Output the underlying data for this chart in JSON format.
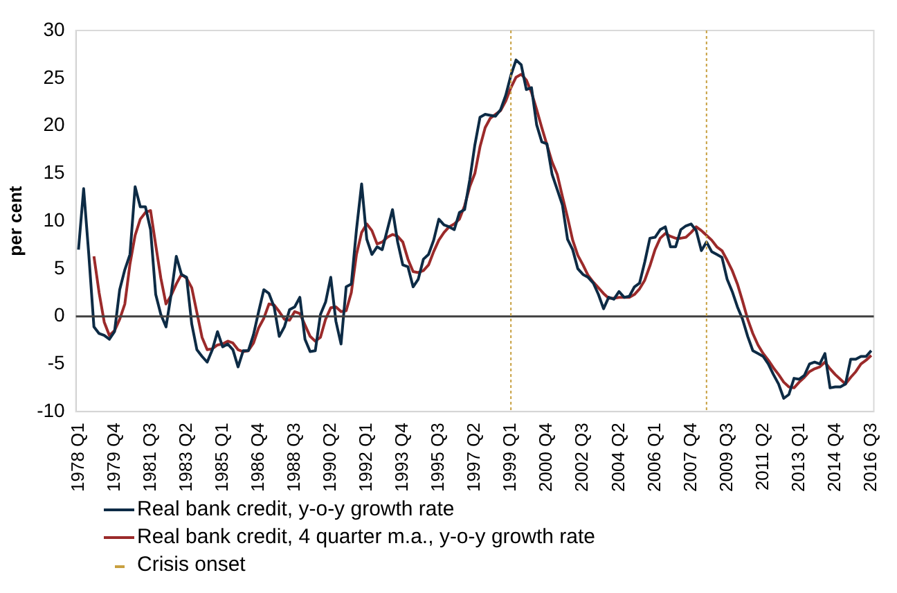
{
  "chart_data": {
    "type": "line",
    "ylabel": "per cent",
    "x": [
      "1978-01",
      "1978-04",
      "1978-07",
      "1978-10",
      "1979-01",
      "1979-04",
      "1979-07",
      "1979-10",
      "1980-01",
      "1980-04",
      "1980-07",
      "1980-10",
      "1981-01",
      "1981-04",
      "1981-07",
      "1981-10",
      "1982-01",
      "1982-04",
      "1982-07",
      "1982-10",
      "1983-01",
      "1983-04",
      "1983-07",
      "1983-10",
      "1984-01",
      "1984-04",
      "1984-07",
      "1984-10",
      "1985-01",
      "1985-04",
      "1985-07",
      "1985-10",
      "1986-01",
      "1986-04",
      "1986-07",
      "1986-10",
      "1987-01",
      "1987-04",
      "1987-07",
      "1987-10",
      "1988-01",
      "1988-04",
      "1988-07",
      "1988-10",
      "1989-01",
      "1989-04",
      "1989-07",
      "1989-10",
      "1990-01",
      "1990-04",
      "1990-07",
      "1990-10",
      "1991-01",
      "1991-04",
      "1991-07",
      "1991-10",
      "1992-01",
      "1992-04",
      "1992-07",
      "1992-10",
      "1993-01",
      "1993-04",
      "1993-07",
      "1993-10",
      "1994-01",
      "1994-04",
      "1994-07",
      "1994-10",
      "1995-01",
      "1995-04",
      "1995-07",
      "1995-10",
      "1996-01",
      "1996-04",
      "1996-07",
      "1996-10",
      "1997-01",
      "1997-04",
      "1997-07",
      "1997-10",
      "1998-01",
      "1998-04",
      "1998-07",
      "1998-10",
      "1999-01",
      "1999-04",
      "1999-07",
      "1999-10",
      "2000-01",
      "2000-04",
      "2000-07",
      "2000-10",
      "2001-01",
      "2001-04",
      "2001-07",
      "2001-10",
      "2002-01",
      "2002-04",
      "2002-07",
      "2002-10",
      "2003-01",
      "2003-04",
      "2003-07",
      "2003-10",
      "2004-01",
      "2004-04",
      "2004-07",
      "2004-10",
      "2005-01",
      "2005-04",
      "2005-07",
      "2005-10",
      "2006-01",
      "2006-04",
      "2006-07",
      "2006-10",
      "2007-01",
      "2007-04",
      "2007-07",
      "2007-10",
      "2008-01",
      "2008-04",
      "2008-07",
      "2008-10",
      "2009-01",
      "2009-04",
      "2009-07",
      "2009-10",
      "2010-01",
      "2010-04",
      "2010-07",
      "2010-10",
      "2011-01",
      "2011-04",
      "2011-07",
      "2011-10",
      "2012-01",
      "2012-04",
      "2012-07",
      "2012-10",
      "2013-01",
      "2013-04",
      "2013-07",
      "2013-10",
      "2014-01",
      "2014-04",
      "2014-07",
      "2014-10",
      "2015-01",
      "2015-04",
      "2015-07",
      "2015-10",
      "2016-01",
      "2016-04",
      "2016-07"
    ],
    "series": [
      {
        "name": "Real bank credit, y-o-y growth rate",
        "color": "#0d2b45",
        "values": [
          7.0,
          13.4,
          6.5,
          -1.1,
          -1.8,
          -2.0,
          -2.4,
          -1.6,
          2.8,
          4.9,
          6.5,
          13.6,
          11.5,
          11.5,
          9.1,
          2.3,
          0.2,
          -1.1,
          2.3,
          6.3,
          4.4,
          4.1,
          -0.8,
          -3.5,
          -4.2,
          -4.8,
          -3.5,
          -1.6,
          -3.2,
          -2.9,
          -3.5,
          -5.3,
          -3.6,
          -3.6,
          -1.9,
          0.5,
          2.8,
          2.4,
          1.0,
          -2.1,
          -1.1,
          0.7,
          1.0,
          2.0,
          -2.4,
          -3.7,
          -3.6,
          0.2,
          1.5,
          4.1,
          -0.5,
          -2.9,
          3.1,
          3.4,
          9.1,
          13.9,
          8.1,
          6.5,
          7.3,
          7.0,
          9.1,
          11.2,
          7.8,
          5.4,
          5.2,
          3.1,
          3.9,
          6.0,
          6.5,
          8.0,
          10.2,
          9.6,
          9.4,
          9.1,
          10.9,
          11.2,
          14.3,
          18.0,
          20.9,
          21.2,
          21.1,
          21.0,
          21.7,
          23.2,
          25.3,
          26.9,
          26.4,
          23.8,
          24.0,
          20.1,
          18.3,
          18.1,
          14.9,
          13.3,
          11.7,
          8.1,
          7.0,
          5.0,
          4.4,
          4.1,
          3.5,
          2.3,
          0.8,
          2.0,
          1.8,
          2.6,
          2.0,
          2.1,
          3.1,
          3.5,
          5.7,
          8.2,
          8.3,
          9.1,
          9.4,
          7.3,
          7.3,
          9.1,
          9.5,
          9.7,
          9.0,
          6.9,
          7.8,
          6.8,
          6.5,
          6.2,
          3.9,
          2.6,
          1.0,
          -0.3,
          -2.1,
          -3.6,
          -3.9,
          -4.2,
          -5.0,
          -6.1,
          -7.1,
          -8.6,
          -8.2,
          -6.5,
          -6.6,
          -6.2,
          -5.0,
          -4.8,
          -5.0,
          -3.9,
          -7.5,
          -7.4,
          -7.4,
          -7.1,
          -4.5,
          -4.5,
          -4.2,
          -4.2,
          -3.6
        ]
      },
      {
        "name": "Real bank credit, 4 quarter m.a., y-o-y growth rate",
        "color": "#9b2a2a",
        "values": [
          null,
          null,
          null,
          6.3,
          2.5,
          -0.6,
          -2.0,
          -1.5,
          -0.3,
          1.3,
          5.5,
          8.5,
          10.2,
          10.9,
          11.1,
          7.5,
          4.0,
          1.3,
          2.2,
          3.4,
          4.4,
          4.0,
          3.0,
          0.4,
          -2.2,
          -3.5,
          -3.4,
          -3.0,
          -2.9,
          -2.6,
          -2.8,
          -3.5,
          -3.7,
          -3.6,
          -2.8,
          -1.2,
          -0.2,
          1.3,
          1.2,
          0.5,
          -0.3,
          -0.4,
          0.5,
          0.3,
          -0.9,
          -2.1,
          -2.6,
          -2.2,
          -0.3,
          0.9,
          1.0,
          0.5,
          0.6,
          2.5,
          6.5,
          8.8,
          9.7,
          9.0,
          7.6,
          7.8,
          8.3,
          8.6,
          8.4,
          7.8,
          6.0,
          4.7,
          4.6,
          4.8,
          5.4,
          6.8,
          8.0,
          8.8,
          9.4,
          9.7,
          10.2,
          11.6,
          13.6,
          15.0,
          17.8,
          19.8,
          20.8,
          21.2,
          21.6,
          22.6,
          24.0,
          25.1,
          25.4,
          24.8,
          23.5,
          21.7,
          19.8,
          18.0,
          16.2,
          14.9,
          12.6,
          10.4,
          8.0,
          6.4,
          5.4,
          4.3,
          3.6,
          3.0,
          2.4,
          1.9,
          1.9,
          2.0,
          2.0,
          2.0,
          2.3,
          2.9,
          3.8,
          5.3,
          7.0,
          8.2,
          8.7,
          8.4,
          8.2,
          8.2,
          8.3,
          8.8,
          9.4,
          9.0,
          8.5,
          8.0,
          7.3,
          6.9,
          5.9,
          4.8,
          3.4,
          1.6,
          -0.3,
          -1.8,
          -3.0,
          -3.9,
          -4.6,
          -5.4,
          -6.1,
          -6.9,
          -7.4,
          -7.5,
          -6.9,
          -6.4,
          -5.8,
          -5.5,
          -5.3,
          -4.8,
          -5.5,
          -6.1,
          -6.6,
          -7.1,
          -6.4,
          -5.8,
          -5.0,
          -4.6,
          -4.1
        ]
      }
    ],
    "xlim": [
      "1977-11-16",
      "2016-08-16"
    ],
    "xticks": [
      {
        "value": "1978-01",
        "label": "1978 Q1"
      },
      {
        "value": "1979-10",
        "label": "1979 Q4"
      },
      {
        "value": "1981-07",
        "label": "1981 Q3"
      },
      {
        "value": "1983-04",
        "label": "1983 Q2"
      },
      {
        "value": "1985-01",
        "label": "1985 Q1"
      },
      {
        "value": "1986-10",
        "label": "1986 Q4"
      },
      {
        "value": "1988-07",
        "label": "1988 Q3"
      },
      {
        "value": "1990-04",
        "label": "1990 Q2"
      },
      {
        "value": "1992-01",
        "label": "1992 Q1"
      },
      {
        "value": "1993-10",
        "label": "1993 Q4"
      },
      {
        "value": "1995-07",
        "label": "1995 Q3"
      },
      {
        "value": "1997-04",
        "label": "1997 Q2"
      },
      {
        "value": "1999-01",
        "label": "1999 Q1"
      },
      {
        "value": "2000-10",
        "label": "2000 Q4"
      },
      {
        "value": "2002-07",
        "label": "2002 Q3"
      },
      {
        "value": "2004-04",
        "label": "2004 Q2"
      },
      {
        "value": "2006-01",
        "label": "2006 Q1"
      },
      {
        "value": "2007-10",
        "label": "2007 Q4"
      },
      {
        "value": "2009-07",
        "label": "2009 Q3"
      },
      {
        "value": "2011-04",
        "label": "2011 Q2"
      },
      {
        "value": "2013-01",
        "label": "2013 Q1"
      },
      {
        "value": "2014-10",
        "label": "2014 Q4"
      },
      {
        "value": "2016-07",
        "label": "2016 Q3"
      }
    ],
    "ylim": [
      -10,
      30
    ],
    "yticks": [
      -10,
      -5,
      0,
      5,
      10,
      15,
      20,
      25,
      30
    ],
    "ref_lines": [
      {
        "axis": "y",
        "value": 0,
        "color": "#404040",
        "line_style": "solid"
      },
      {
        "axis": "x",
        "value": "1999-01",
        "label": "Crisis onset",
        "color": "#c8a040",
        "line_style": "dotted"
      },
      {
        "axis": "x",
        "value": "2008-07",
        "color": "#c8a040",
        "line_style": "dotted"
      }
    ],
    "grid": false,
    "legend": "bottom",
    "marker": "none",
    "line_style": "solid"
  }
}
